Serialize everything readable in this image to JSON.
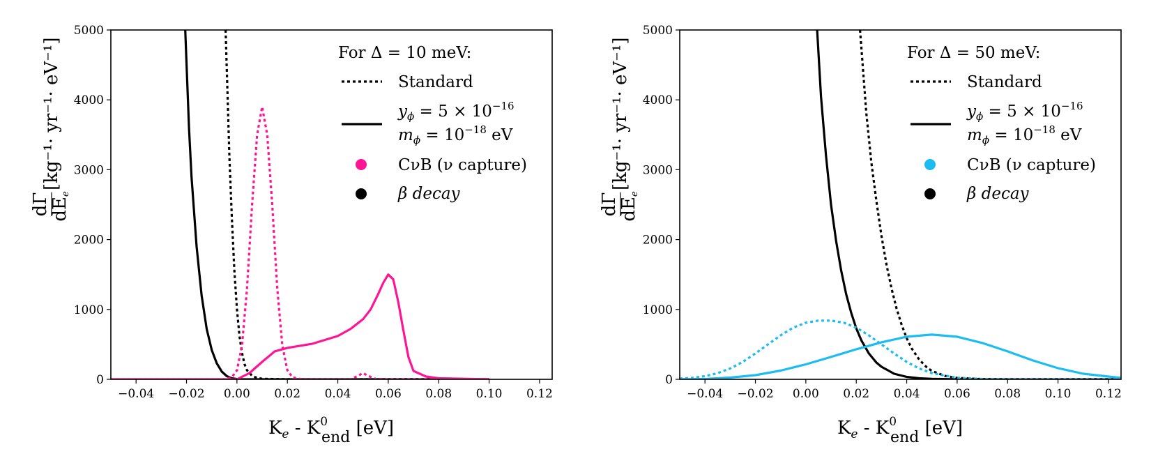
{
  "chart_data": [
    {
      "type": "line",
      "panel": "left",
      "xlabel_main": "K",
      "xlabel_sub": "e",
      "xlabel_mid": " - K",
      "xlabel_sup": "0",
      "xlabel_sub2": "end",
      "xlabel_unit": " [eV]",
      "ylabel_num": "dΓ",
      "ylabel_den": "dE",
      "ylabel_den_sub": "e",
      "ylabel_unit": "[kg⁻¹· yr⁻¹· eV⁻¹]",
      "xlim": [
        -0.05,
        0.125
      ],
      "ylim": [
        0,
        5000
      ],
      "xticks": [
        -0.04,
        -0.02,
        0.0,
        0.02,
        0.04,
        0.06,
        0.08,
        0.1,
        0.12
      ],
      "xtick_labels": [
        "−0.04",
        "−0.02",
        "0.00",
        "0.02",
        "0.04",
        "0.06",
        "0.08",
        "0.10",
        "0.12"
      ],
      "yticks": [
        0,
        1000,
        2000,
        3000,
        4000,
        5000
      ],
      "ytick_labels": [
        "0",
        "1000",
        "2000",
        "3000",
        "4000",
        "5000"
      ],
      "legend": {
        "title": "For Δ = 10 meV:",
        "standard": "Standard",
        "yphi_line": "y",
        "yphi_sub": "ϕ",
        "yphi_value": " = 5 × 10",
        "yphi_exp": "−16",
        "mphi_line": "m",
        "mphi_sub": "ϕ",
        "mphi_value": " = 10",
        "mphi_exp": "−18",
        "mphi_unit": " eV",
        "cnb": "CνB (ν capture)",
        "beta": "β decay",
        "placement": "top-right"
      },
      "cnb_color": "#ff1493",
      "beta_color": "#000000",
      "series": [
        {
          "role": "beta-standard",
          "style": "dotted",
          "color": "#000000",
          "x": [
            -0.0045,
            -0.003,
            -0.002,
            -0.001,
            0.0,
            0.001,
            0.002,
            0.003,
            0.004,
            0.006,
            0.008,
            0.01,
            0.015,
            0.02,
            0.03,
            0.05,
            0.1
          ],
          "y": [
            5000,
            3200,
            2300,
            1550,
            1000,
            620,
            380,
            220,
            130,
            50,
            20,
            8,
            3,
            1,
            0,
            0,
            0
          ]
        },
        {
          "role": "beta-modified",
          "style": "solid",
          "color": "#000000",
          "x": [
            -0.0205,
            -0.019,
            -0.018,
            -0.016,
            -0.014,
            -0.012,
            -0.01,
            -0.008,
            -0.006,
            -0.004,
            -0.002,
            0.0,
            0.002,
            0.005,
            0.01,
            0.03,
            0.1
          ],
          "y": [
            5000,
            3600,
            2900,
            1900,
            1200,
            720,
            420,
            230,
            110,
            45,
            15,
            4,
            1,
            0,
            0,
            0,
            0
          ]
        },
        {
          "role": "cnb-standard",
          "style": "dotted",
          "color": "#ff1493",
          "x": [
            -0.05,
            -0.005,
            -0.002,
            0.0,
            0.002,
            0.004,
            0.006,
            0.008,
            0.01,
            0.012,
            0.014,
            0.016,
            0.018,
            0.02,
            0.022,
            0.025,
            0.03,
            0.045,
            0.048,
            0.05,
            0.052,
            0.055,
            0.06,
            0.1
          ],
          "y": [
            0,
            0,
            30,
            130,
            480,
            1300,
            2500,
            3500,
            3900,
            3500,
            2500,
            1300,
            480,
            130,
            30,
            5,
            0,
            0,
            50,
            90,
            50,
            5,
            0,
            0
          ]
        },
        {
          "role": "cnb-modified",
          "style": "solid",
          "color": "#ff1493",
          "x": [
            -0.05,
            0.0,
            0.005,
            0.01,
            0.015,
            0.02,
            0.03,
            0.04,
            0.045,
            0.05,
            0.053,
            0.056,
            0.058,
            0.06,
            0.062,
            0.064,
            0.066,
            0.068,
            0.07,
            0.075,
            0.08,
            0.1
          ],
          "y": [
            0,
            0,
            90,
            250,
            400,
            450,
            510,
            620,
            720,
            860,
            1000,
            1220,
            1380,
            1500,
            1430,
            1100,
            700,
            320,
            120,
            40,
            15,
            0
          ]
        }
      ]
    },
    {
      "type": "line",
      "panel": "right",
      "xlabel_main": "K",
      "xlabel_sub": "e",
      "xlabel_mid": " - K",
      "xlabel_sup": "0",
      "xlabel_sub2": "end",
      "xlabel_unit": " [eV]",
      "ylabel_num": "dΓ",
      "ylabel_den": "dE",
      "ylabel_den_sub": "e",
      "ylabel_unit": "[kg⁻¹· yr⁻¹· eV⁻¹]",
      "xlim": [
        -0.05,
        0.125
      ],
      "ylim": [
        0,
        5000
      ],
      "xticks": [
        -0.04,
        -0.02,
        0.0,
        0.02,
        0.04,
        0.06,
        0.08,
        0.1,
        0.12
      ],
      "xtick_labels": [
        "−0.04",
        "−0.02",
        "0.00",
        "0.02",
        "0.04",
        "0.06",
        "0.08",
        "0.10",
        "0.12"
      ],
      "yticks": [
        0,
        1000,
        2000,
        3000,
        4000,
        5000
      ],
      "ytick_labels": [
        "0",
        "1000",
        "2000",
        "3000",
        "4000",
        "5000"
      ],
      "legend": {
        "title": "For Δ = 50 meV:",
        "standard": "Standard",
        "yphi_line": "y",
        "yphi_sub": "ϕ",
        "yphi_value": " = 5 × 10",
        "yphi_exp": "−16",
        "mphi_line": "m",
        "mphi_sub": "ϕ",
        "mphi_value": " = 10",
        "mphi_exp": "−18",
        "mphi_unit": " eV",
        "cnb": "CνB (ν capture)",
        "beta": "β decay",
        "placement": "top-right"
      },
      "cnb_color": "#1bbcf0",
      "beta_color": "#000000",
      "series": [
        {
          "role": "beta-standard",
          "style": "dotted",
          "color": "#000000",
          "x": [
            0.0215,
            0.024,
            0.026,
            0.028,
            0.03,
            0.032,
            0.034,
            0.036,
            0.038,
            0.04,
            0.042,
            0.045,
            0.048,
            0.05,
            0.055,
            0.06,
            0.07,
            0.08,
            0.1,
            0.125
          ],
          "y": [
            5000,
            3800,
            3100,
            2550,
            2050,
            1640,
            1300,
            1010,
            780,
            590,
            440,
            280,
            170,
            120,
            50,
            20,
            3,
            0,
            0,
            0
          ]
        },
        {
          "role": "beta-modified",
          "style": "solid",
          "color": "#000000",
          "x": [
            0.0045,
            0.006,
            0.008,
            0.01,
            0.012,
            0.014,
            0.016,
            0.018,
            0.02,
            0.022,
            0.025,
            0.028,
            0.03,
            0.035,
            0.04,
            0.045,
            0.05,
            0.06,
            0.08,
            0.125
          ],
          "y": [
            5000,
            4050,
            3200,
            2500,
            1980,
            1560,
            1220,
            950,
            730,
            560,
            370,
            240,
            180,
            80,
            35,
            15,
            6,
            0,
            0,
            0
          ]
        },
        {
          "role": "cnb-standard",
          "style": "dotted",
          "color": "#1bbcf0",
          "x": [
            -0.05,
            -0.045,
            -0.04,
            -0.035,
            -0.03,
            -0.025,
            -0.02,
            -0.015,
            -0.01,
            -0.005,
            0.0,
            0.005,
            0.01,
            0.015,
            0.02,
            0.025,
            0.03,
            0.035,
            0.04,
            0.045,
            0.05,
            0.06,
            0.07,
            0.08,
            0.09,
            0.1,
            0.11,
            0.125
          ],
          "y": [
            10,
            22,
            45,
            88,
            155,
            250,
            370,
            500,
            630,
            740,
            810,
            840,
            840,
            810,
            740,
            630,
            500,
            370,
            250,
            155,
            88,
            22,
            5,
            1,
            0,
            0,
            0,
            0
          ]
        },
        {
          "role": "cnb-modified",
          "style": "solid",
          "color": "#1bbcf0",
          "x": [
            -0.05,
            -0.04,
            -0.03,
            -0.02,
            -0.01,
            0.0,
            0.01,
            0.02,
            0.03,
            0.04,
            0.05,
            0.06,
            0.07,
            0.08,
            0.09,
            0.1,
            0.11,
            0.125
          ],
          "y": [
            0,
            5,
            25,
            60,
            125,
            215,
            320,
            430,
            530,
            610,
            640,
            610,
            520,
            400,
            270,
            160,
            80,
            20
          ]
        }
      ]
    }
  ]
}
